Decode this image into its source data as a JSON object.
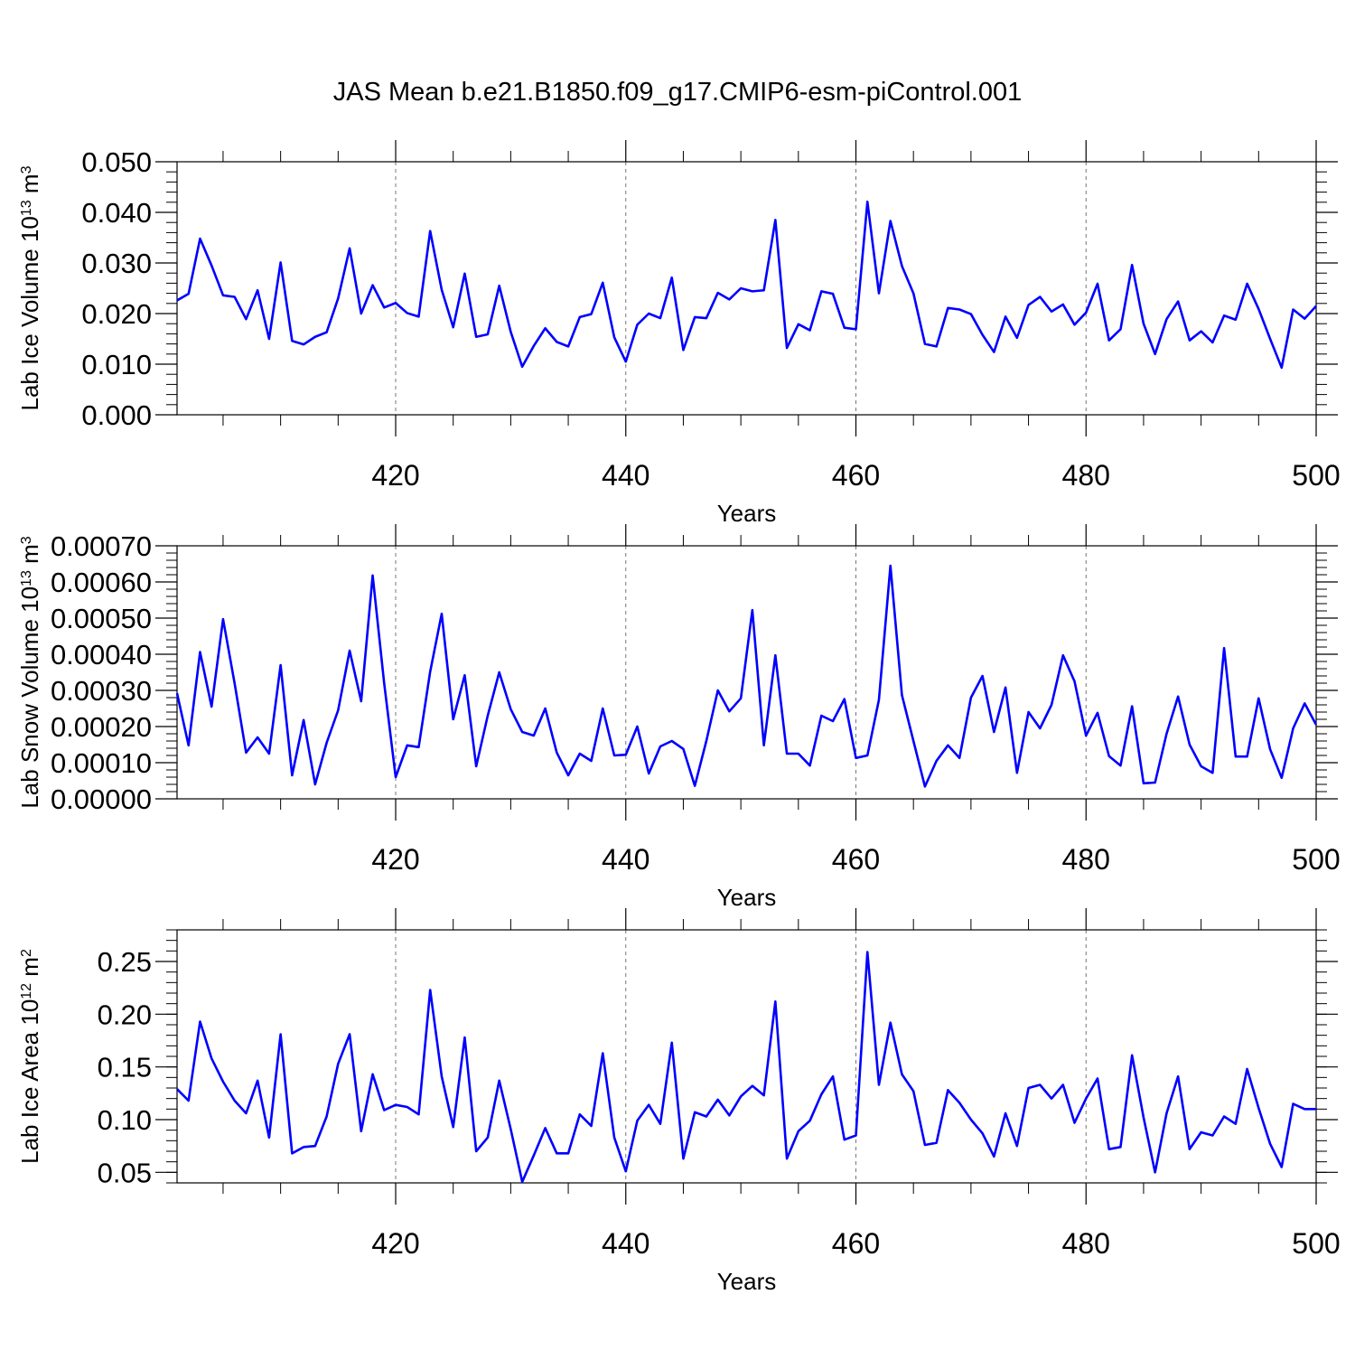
{
  "figure": {
    "title": "JAS Mean b.e21.B1850.f09_g17.CMIP6-esm-piControl.001",
    "line_color": "#0000ff"
  },
  "chart_data": [
    {
      "type": "line",
      "title": "",
      "xlabel": "Years",
      "ylabel": {
        "prefix": "Lab Ice Volume 10",
        "sup1": "13",
        "mid": " m",
        "sup2": "3"
      },
      "xlim": [
        401,
        500
      ],
      "ylim": [
        0.0,
        0.05
      ],
      "xticks": [
        420,
        440,
        460,
        480,
        500
      ],
      "yticks": [
        "0.000",
        "0.010",
        "0.020",
        "0.030",
        "0.040",
        "0.050"
      ],
      "yticks_values": [
        0.0,
        0.01,
        0.02,
        0.03,
        0.04,
        0.05
      ],
      "grid": "dashed vertical at major x ticks",
      "x": [
        401,
        402,
        403,
        404,
        405,
        406,
        407,
        408,
        409,
        410,
        411,
        412,
        413,
        414,
        415,
        416,
        417,
        418,
        419,
        420,
        421,
        422,
        423,
        424,
        425,
        426,
        427,
        428,
        429,
        430,
        431,
        432,
        433,
        434,
        435,
        436,
        437,
        438,
        439,
        440,
        441,
        442,
        443,
        444,
        445,
        446,
        447,
        448,
        449,
        450,
        451,
        452,
        453,
        454,
        455,
        456,
        457,
        458,
        459,
        460,
        461,
        462,
        463,
        464,
        465,
        466,
        467,
        468,
        469,
        470,
        471,
        472,
        473,
        474,
        475,
        476,
        477,
        478,
        479,
        480,
        481,
        482,
        483,
        484,
        485,
        486,
        487,
        488,
        489,
        490,
        491,
        492,
        493,
        494,
        495,
        496,
        497,
        498,
        499,
        500
      ],
      "series": [
        {
          "values": [
            0.0226,
            0.0239,
            0.0348,
            0.0295,
            0.0236,
            0.0233,
            0.0189,
            0.0246,
            0.015,
            0.0301,
            0.0146,
            0.0139,
            0.0154,
            0.0163,
            0.023,
            0.0329,
            0.02,
            0.0256,
            0.0212,
            0.0221,
            0.0201,
            0.0194,
            0.0363,
            0.0247,
            0.0173,
            0.0279,
            0.0154,
            0.0159,
            0.0255,
            0.0164,
            0.0095,
            0.0136,
            0.0171,
            0.0144,
            0.0135,
            0.0193,
            0.0199,
            0.0261,
            0.0153,
            0.0105,
            0.0178,
            0.02,
            0.0191,
            0.0271,
            0.0128,
            0.0193,
            0.0191,
            0.0241,
            0.0228,
            0.025,
            0.0244,
            0.0246,
            0.0385,
            0.0132,
            0.0179,
            0.0167,
            0.0244,
            0.0239,
            0.0172,
            0.0169,
            0.0421,
            0.024,
            0.0383,
            0.0294,
            0.024,
            0.014,
            0.0135,
            0.0211,
            0.0208,
            0.0199,
            0.0158,
            0.0124,
            0.0194,
            0.0152,
            0.0217,
            0.0233,
            0.0204,
            0.0218,
            0.0178,
            0.0202,
            0.0259,
            0.0147,
            0.0169,
            0.0296,
            0.018,
            0.012,
            0.0189,
            0.0224,
            0.0147,
            0.0165,
            0.0143,
            0.0196,
            0.0188,
            0.0259,
            0.0209,
            0.015,
            0.0093,
            0.0208,
            0.019,
            0.0215
          ]
        }
      ]
    },
    {
      "type": "line",
      "title": "",
      "xlabel": "Years",
      "ylabel": {
        "prefix": "Lab Snow Volume 10",
        "sup1": "13",
        "mid": " m",
        "sup2": "3"
      },
      "xlim": [
        401,
        500
      ],
      "ylim": [
        0.0,
        0.0007
      ],
      "xticks": [
        420,
        440,
        460,
        480,
        500
      ],
      "yticks": [
        "0.00000",
        "0.00010",
        "0.00020",
        "0.00030",
        "0.00040",
        "0.00050",
        "0.00060",
        "0.00070"
      ],
      "yticks_values": [
        0.0,
        0.0001,
        0.0002,
        0.0003,
        0.0004,
        0.0005,
        0.0006,
        0.0007
      ],
      "grid": "dashed vertical at major x ticks",
      "x": [
        401,
        402,
        403,
        404,
        405,
        406,
        407,
        408,
        409,
        410,
        411,
        412,
        413,
        414,
        415,
        416,
        417,
        418,
        419,
        420,
        421,
        422,
        423,
        424,
        425,
        426,
        427,
        428,
        429,
        430,
        431,
        432,
        433,
        434,
        435,
        436,
        437,
        438,
        439,
        440,
        441,
        442,
        443,
        444,
        445,
        446,
        447,
        448,
        449,
        450,
        451,
        452,
        453,
        454,
        455,
        456,
        457,
        458,
        459,
        460,
        461,
        462,
        463,
        464,
        465,
        466,
        467,
        468,
        469,
        470,
        471,
        472,
        473,
        474,
        475,
        476,
        477,
        478,
        479,
        480,
        481,
        482,
        483,
        484,
        485,
        486,
        487,
        488,
        489,
        490,
        491,
        492,
        493,
        494,
        495,
        496,
        497,
        498,
        499,
        500
      ],
      "series": [
        {
          "values": [
            0.000292,
            0.000148,
            0.000406,
            0.000255,
            0.000497,
            0.00032,
            0.000128,
            0.00017,
            0.000125,
            0.00037,
            6.5e-05,
            0.000218,
            4e-05,
            0.000155,
            0.000245,
            0.00041,
            0.00027,
            0.000618,
            0.00032,
            6e-05,
            0.000148,
            0.000143,
            0.000352,
            0.000512,
            0.00022,
            0.000342,
            9e-05,
            0.00023,
            0.00035,
            0.000248,
            0.000185,
            0.000175,
            0.00025,
            0.000128,
            6.5e-05,
            0.000125,
            0.000105,
            0.00025,
            0.00012,
            0.000122,
            0.0002,
            7e-05,
            0.000145,
            0.00016,
            0.000138,
            3.6e-05,
            0.00016,
            0.0003,
            0.000242,
            0.000278,
            0.000522,
            0.000148,
            0.000397,
            0.000125,
            0.000125,
            9.2e-05,
            0.00023,
            0.000215,
            0.000276,
            0.000113,
            0.00012,
            0.000274,
            0.000645,
            0.000287,
            0.00016,
            3.4e-05,
            0.000105,
            0.000148,
            0.000113,
            0.00028,
            0.00034,
            0.000185,
            0.000308,
            7.2e-05,
            0.00024,
            0.000195,
            0.00026,
            0.000397,
            0.000325,
            0.000175,
            0.000238,
            0.000118,
            9.2e-05,
            0.000256,
            4.3e-05,
            4.5e-05,
            0.00018,
            0.000283,
            0.00015,
            9e-05,
            7.2e-05,
            0.000417,
            0.000117,
            0.000117,
            0.000278,
            0.000137,
            5.8e-05,
            0.000195,
            0.000264,
            0.000205
          ]
        }
      ]
    },
    {
      "type": "line",
      "title": "",
      "xlabel": "Years",
      "ylabel": {
        "prefix": "Lab Ice Area 10",
        "sup1": "12",
        "mid": " m",
        "sup2": "2"
      },
      "xlim": [
        401,
        500
      ],
      "ylim": [
        0.04,
        0.28
      ],
      "xticks": [
        420,
        440,
        460,
        480,
        500
      ],
      "yticks": [
        "0.05",
        "0.10",
        "0.15",
        "0.20",
        "0.25"
      ],
      "yticks_values": [
        0.05,
        0.1,
        0.15,
        0.2,
        0.25
      ],
      "grid": "dashed vertical at major x ticks",
      "x": [
        401,
        402,
        403,
        404,
        405,
        406,
        407,
        408,
        409,
        410,
        411,
        412,
        413,
        414,
        415,
        416,
        417,
        418,
        419,
        420,
        421,
        422,
        423,
        424,
        425,
        426,
        427,
        428,
        429,
        430,
        431,
        432,
        433,
        434,
        435,
        436,
        437,
        438,
        439,
        440,
        441,
        442,
        443,
        444,
        445,
        446,
        447,
        448,
        449,
        450,
        451,
        452,
        453,
        454,
        455,
        456,
        457,
        458,
        459,
        460,
        461,
        462,
        463,
        464,
        465,
        466,
        467,
        468,
        469,
        470,
        471,
        472,
        473,
        474,
        475,
        476,
        477,
        478,
        479,
        480,
        481,
        482,
        483,
        484,
        485,
        486,
        487,
        488,
        489,
        490,
        491,
        492,
        493,
        494,
        495,
        496,
        497,
        498,
        499,
        500
      ],
      "series": [
        {
          "values": [
            0.129,
            0.118,
            0.193,
            0.158,
            0.136,
            0.118,
            0.106,
            0.137,
            0.083,
            0.181,
            0.068,
            0.074,
            0.075,
            0.103,
            0.153,
            0.181,
            0.089,
            0.143,
            0.109,
            0.114,
            0.112,
            0.105,
            0.223,
            0.141,
            0.093,
            0.178,
            0.07,
            0.083,
            0.137,
            0.091,
            0.041,
            0.066,
            0.092,
            0.068,
            0.068,
            0.105,
            0.094,
            0.163,
            0.083,
            0.051,
            0.099,
            0.114,
            0.096,
            0.173,
            0.063,
            0.107,
            0.103,
            0.119,
            0.104,
            0.122,
            0.132,
            0.123,
            0.212,
            0.063,
            0.089,
            0.099,
            0.124,
            0.141,
            0.081,
            0.085,
            0.259,
            0.133,
            0.192,
            0.143,
            0.127,
            0.076,
            0.078,
            0.128,
            0.116,
            0.1,
            0.087,
            0.065,
            0.106,
            0.075,
            0.13,
            0.133,
            0.12,
            0.133,
            0.097,
            0.12,
            0.139,
            0.072,
            0.074,
            0.161,
            0.102,
            0.05,
            0.106,
            0.141,
            0.072,
            0.088,
            0.085,
            0.103,
            0.096,
            0.148,
            0.111,
            0.077,
            0.055,
            0.115,
            0.11,
            0.11
          ]
        }
      ]
    }
  ]
}
